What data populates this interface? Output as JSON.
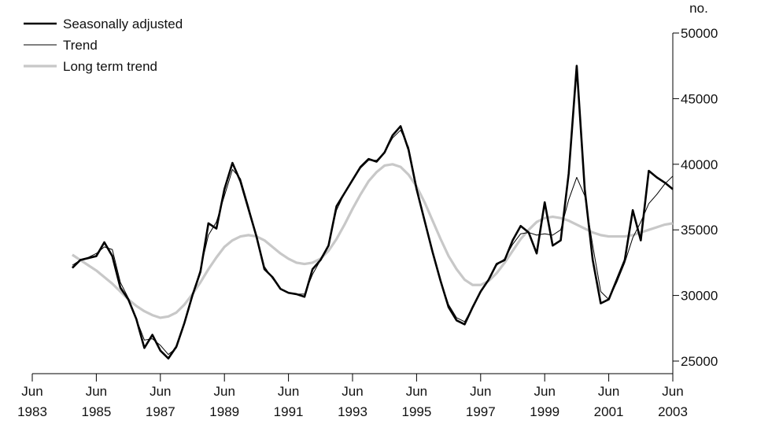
{
  "chart_data": {
    "type": "line",
    "unit_label": "no.",
    "x": [
      "1984-09",
      "1984-12",
      "1985-03",
      "1985-06",
      "1985-09",
      "1985-12",
      "1986-03",
      "1986-06",
      "1986-09",
      "1986-12",
      "1987-03",
      "1987-06",
      "1987-09",
      "1987-12",
      "1988-03",
      "1988-06",
      "1988-09",
      "1988-12",
      "1989-03",
      "1989-06",
      "1989-09",
      "1989-12",
      "1990-03",
      "1990-06",
      "1990-09",
      "1990-12",
      "1991-03",
      "1991-06",
      "1991-09",
      "1991-12",
      "1992-03",
      "1992-06",
      "1992-09",
      "1992-12",
      "1993-03",
      "1993-06",
      "1993-09",
      "1993-12",
      "1994-03",
      "1994-06",
      "1994-09",
      "1994-12",
      "1995-03",
      "1995-06",
      "1995-09",
      "1995-12",
      "1996-03",
      "1996-06",
      "1996-09",
      "1996-12",
      "1997-03",
      "1997-06",
      "1997-09",
      "1997-12",
      "1998-03",
      "1998-06",
      "1998-09",
      "1998-12",
      "1999-03",
      "1999-06",
      "1999-09",
      "1999-12",
      "2000-03",
      "2000-06",
      "2000-09",
      "2000-12",
      "2001-03",
      "2001-06",
      "2001-09",
      "2001-12",
      "2002-03",
      "2002-06",
      "2002-09",
      "2002-12",
      "2003-03",
      "2003-06"
    ],
    "series": [
      {
        "name": "Seasonally adjusted",
        "color": "#000000",
        "width": 2.6,
        "values": [
          32100,
          32700,
          32850,
          33000,
          34050,
          33000,
          30600,
          29700,
          28200,
          26000,
          27000,
          25800,
          25200,
          26100,
          27900,
          30000,
          31800,
          35500,
          35100,
          38100,
          40100,
          38700,
          36600,
          34500,
          32000,
          31400,
          30500,
          30200,
          30100,
          29900,
          32000,
          32700,
          33800,
          36800,
          37800,
          38800,
          39800,
          40400,
          40200,
          40900,
          42200,
          42900,
          41100,
          38100,
          35700,
          33300,
          31100,
          29100,
          28100,
          27800,
          29100,
          30300,
          31200,
          32400,
          32700,
          34200,
          35300,
          34800,
          33200,
          37100,
          33800,
          34200,
          39300,
          47500,
          38100,
          32700,
          29400,
          29700,
          31200,
          32700,
          36500,
          34200,
          39500,
          39000,
          38600,
          38100
        ]
      },
      {
        "name": "Trend",
        "color": "#000000",
        "width": 1,
        "values": [
          32300,
          32700,
          32900,
          33200,
          33700,
          33500,
          31000,
          29800,
          28200,
          26600,
          26700,
          26200,
          25500,
          26000,
          27800,
          30000,
          32000,
          34600,
          35600,
          37600,
          39600,
          38900,
          36800,
          34500,
          32200,
          31300,
          30500,
          30200,
          30100,
          30100,
          31600,
          32700,
          33900,
          36500,
          37800,
          38800,
          39700,
          40300,
          40300,
          40900,
          42000,
          42600,
          41300,
          38300,
          35700,
          33300,
          31100,
          29300,
          28300,
          28000,
          29100,
          30300,
          31200,
          32300,
          32800,
          33900,
          34700,
          34800,
          34600,
          34700,
          34600,
          35000,
          37300,
          39000,
          37600,
          33800,
          30300,
          29700,
          31000,
          32500,
          34400,
          35600,
          37000,
          37700,
          38500,
          39100
        ]
      },
      {
        "name": "Long term trend",
        "color": "#c8c8c8",
        "width": 3.2,
        "values": [
          33100,
          32700,
          32300,
          31900,
          31400,
          30900,
          30300,
          29700,
          29200,
          28800,
          28500,
          28300,
          28400,
          28700,
          29300,
          30100,
          31000,
          32000,
          32900,
          33700,
          34200,
          34500,
          34600,
          34500,
          34200,
          33700,
          33200,
          32800,
          32500,
          32400,
          32500,
          32800,
          33400,
          34300,
          35400,
          36600,
          37700,
          38700,
          39400,
          39900,
          40000,
          39800,
          39200,
          38300,
          37100,
          35700,
          34300,
          33000,
          32000,
          31200,
          30800,
          30800,
          31100,
          31700,
          32500,
          33400,
          34300,
          35000,
          35600,
          35900,
          36000,
          35900,
          35700,
          35400,
          35100,
          34800,
          34600,
          34500,
          34500,
          34500,
          34600,
          34800,
          35000,
          35200,
          35400,
          35500
        ]
      }
    ],
    "xlim": [
      "1983-06",
      "2003-06"
    ],
    "xticks": [
      {
        "value": "1983-06",
        "label": "Jun 1983"
      },
      {
        "value": "1985-06",
        "label": "Jun 1985"
      },
      {
        "value": "1987-06",
        "label": "Jun 1987"
      },
      {
        "value": "1989-06",
        "label": "Jun 1989"
      },
      {
        "value": "1991-06",
        "label": "Jun 1991"
      },
      {
        "value": "1993-06",
        "label": "Jun 1993"
      },
      {
        "value": "1995-06",
        "label": "Jun 1995"
      },
      {
        "value": "1997-06",
        "label": "Jun 1997"
      },
      {
        "value": "1999-06",
        "label": "Jun 1999"
      },
      {
        "value": "2001-06",
        "label": "Jun 2001"
      },
      {
        "value": "2003-06",
        "label": "Jun 2003"
      }
    ],
    "ylim": [
      25000,
      50000
    ],
    "yticks": [
      25000,
      30000,
      35000,
      40000,
      45000,
      50000
    ],
    "y_axis_side": "right",
    "legend": "top-left",
    "grid": false
  }
}
